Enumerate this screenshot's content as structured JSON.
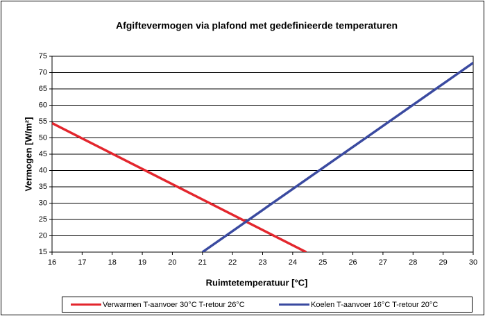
{
  "chart_data": {
    "type": "line",
    "title": "Afgiftevermogen via plafond met gedefinieerde temperaturen",
    "xlabel": "Ruimtetemperatuur [°C]",
    "ylabel": "Vermogen [W/m²]",
    "xlim": [
      16,
      30
    ],
    "xticks": [
      16,
      17,
      18,
      19,
      20,
      21,
      22,
      23,
      24,
      25,
      26,
      27,
      28,
      29,
      30
    ],
    "ylim": [
      15,
      75
    ],
    "yticks": [
      15,
      20,
      25,
      30,
      35,
      40,
      45,
      50,
      55,
      60,
      65,
      70,
      75
    ],
    "grid": true,
    "legend": "bottom",
    "series": [
      {
        "name": "Verwarmen T-aanvoer 30°C T-retour 26°C",
        "color": "#e3262d",
        "x": [
          16,
          24.45
        ],
        "values": [
          54.5,
          15
        ]
      },
      {
        "name": "Koelen T-aanvoer 16°C T-retour 20°C",
        "color": "#3a4aa0",
        "x": [
          21,
          30
        ],
        "values": [
          15,
          73
        ]
      }
    ]
  }
}
